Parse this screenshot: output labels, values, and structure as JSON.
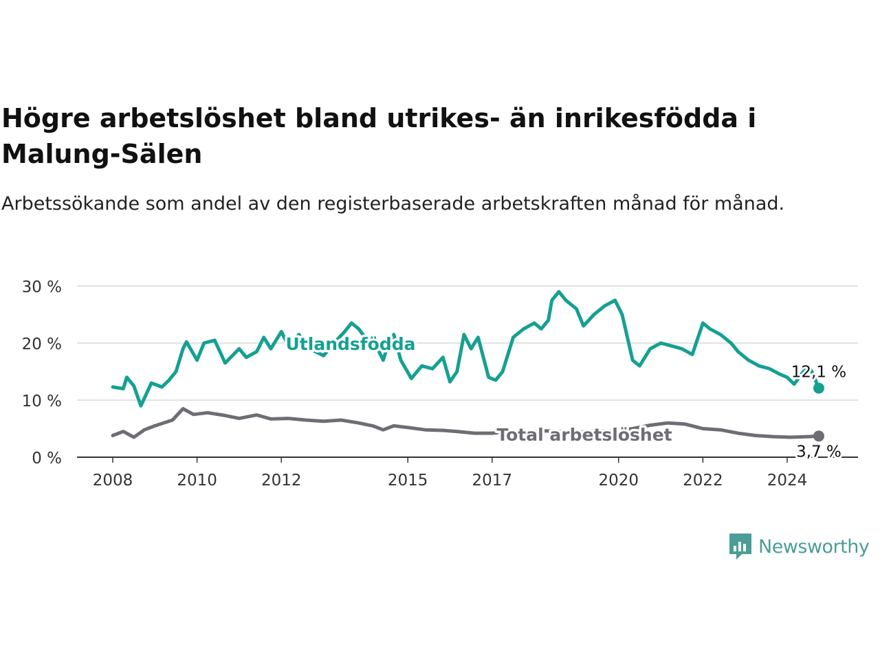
{
  "title": "Högre arbetslöshet bland utrikes- än inrikesfödda i Malung-Sälen",
  "subtitle": "Arbetssökande som andel av den registerbaserade arbetskraften månad för månad.",
  "brand": {
    "name": "Newsworthy",
    "color": "#4a9e96"
  },
  "chart_data": {
    "type": "line",
    "y_ticks": [
      {
        "value": 0,
        "label": "0 %"
      },
      {
        "value": 10,
        "label": "10 %"
      },
      {
        "value": 20,
        "label": "20 %"
      },
      {
        "value": 30,
        "label": "30 %"
      }
    ],
    "x_ticks": [
      {
        "value": "2008-01",
        "label": "2008"
      },
      {
        "value": "2010-01",
        "label": "2010"
      },
      {
        "value": "2012-01",
        "label": "2012"
      },
      {
        "value": "2015-01",
        "label": "2015"
      },
      {
        "value": "2017-01",
        "label": "2017"
      },
      {
        "value": "2020-01",
        "label": "2020"
      },
      {
        "value": "2022-01",
        "label": "2022"
      },
      {
        "value": "2024-01",
        "label": "2024"
      }
    ],
    "ylim": [
      0,
      30
    ],
    "xlim": [
      "2008-01",
      "2024-10"
    ],
    "grid": true,
    "series": [
      {
        "name": "Utlandsfödda",
        "color": "#15a092",
        "end_label": "12,1 %",
        "points": [
          [
            "2008-01",
            12.3
          ],
          [
            "2008-04",
            12.0
          ],
          [
            "2008-05",
            14.0
          ],
          [
            "2008-07",
            12.5
          ],
          [
            "2008-09",
            9.0
          ],
          [
            "2008-12",
            13.0
          ],
          [
            "2009-03",
            12.3
          ],
          [
            "2009-05",
            13.5
          ],
          [
            "2009-07",
            15.0
          ],
          [
            "2009-09",
            19.0
          ],
          [
            "2009-10",
            20.2
          ],
          [
            "2010-01",
            17.0
          ],
          [
            "2010-03",
            20.0
          ],
          [
            "2010-06",
            20.5
          ],
          [
            "2010-09",
            16.5
          ],
          [
            "2011-01",
            19.0
          ],
          [
            "2011-03",
            17.5
          ],
          [
            "2011-06",
            18.5
          ],
          [
            "2011-08",
            21.0
          ],
          [
            "2011-10",
            19.0
          ],
          [
            "2012-01",
            22.0
          ],
          [
            "2012-03",
            19.5
          ],
          [
            "2012-06",
            21.5
          ],
          [
            "2012-09",
            19.0
          ],
          [
            "2013-01",
            17.8
          ],
          [
            "2013-04",
            20.0
          ],
          [
            "2013-07",
            22.0
          ],
          [
            "2013-09",
            23.5
          ],
          [
            "2013-11",
            22.5
          ],
          [
            "2014-02",
            20.0
          ],
          [
            "2014-04",
            19.5
          ],
          [
            "2014-06",
            17.0
          ],
          [
            "2014-07",
            19.0
          ],
          [
            "2014-09",
            21.5
          ],
          [
            "2014-11",
            17.0
          ],
          [
            "2015-02",
            13.8
          ],
          [
            "2015-05",
            16.0
          ],
          [
            "2015-08",
            15.5
          ],
          [
            "2015-11",
            17.5
          ],
          [
            "2016-01",
            13.2
          ],
          [
            "2016-03",
            15.0
          ],
          [
            "2016-05",
            21.5
          ],
          [
            "2016-07",
            19.0
          ],
          [
            "2016-09",
            21.0
          ],
          [
            "2016-12",
            14.0
          ],
          [
            "2017-02",
            13.5
          ],
          [
            "2017-04",
            15.0
          ],
          [
            "2017-07",
            21.0
          ],
          [
            "2017-10",
            22.5
          ],
          [
            "2018-01",
            23.5
          ],
          [
            "2018-03",
            22.5
          ],
          [
            "2018-05",
            24.0
          ],
          [
            "2018-06",
            27.5
          ],
          [
            "2018-08",
            29.0
          ],
          [
            "2018-10",
            27.5
          ],
          [
            "2019-01",
            26.0
          ],
          [
            "2019-03",
            23.0
          ],
          [
            "2019-06",
            25.0
          ],
          [
            "2019-09",
            26.5
          ],
          [
            "2019-12",
            27.5
          ],
          [
            "2020-02",
            25.0
          ],
          [
            "2020-05",
            17.0
          ],
          [
            "2020-07",
            16.0
          ],
          [
            "2020-10",
            19.0
          ],
          [
            "2021-01",
            20.0
          ],
          [
            "2021-04",
            19.5
          ],
          [
            "2021-07",
            19.0
          ],
          [
            "2021-10",
            18.0
          ],
          [
            "2022-01",
            23.5
          ],
          [
            "2022-03",
            22.5
          ],
          [
            "2022-06",
            21.5
          ],
          [
            "2022-09",
            20.0
          ],
          [
            "2022-11",
            18.5
          ],
          [
            "2023-02",
            17.0
          ],
          [
            "2023-05",
            16.0
          ],
          [
            "2023-08",
            15.5
          ],
          [
            "2023-11",
            14.5
          ],
          [
            "2024-01",
            14.0
          ],
          [
            "2024-03",
            12.8
          ],
          [
            "2024-05",
            14.5
          ],
          [
            "2024-07",
            16.0
          ],
          [
            "2024-08",
            15.0
          ],
          [
            "2024-10",
            12.1
          ]
        ]
      },
      {
        "name": "Total arbetslöshet",
        "color": "#6e6d73",
        "end_label": "3,7 %",
        "points": [
          [
            "2008-01",
            3.8
          ],
          [
            "2008-04",
            4.5
          ],
          [
            "2008-07",
            3.5
          ],
          [
            "2008-10",
            4.8
          ],
          [
            "2009-01",
            5.5
          ],
          [
            "2009-06",
            6.5
          ],
          [
            "2009-09",
            8.5
          ],
          [
            "2009-12",
            7.5
          ],
          [
            "2010-04",
            7.8
          ],
          [
            "2010-09",
            7.3
          ],
          [
            "2011-01",
            6.8
          ],
          [
            "2011-06",
            7.4
          ],
          [
            "2011-10",
            6.7
          ],
          [
            "2012-03",
            6.8
          ],
          [
            "2012-08",
            6.5
          ],
          [
            "2013-01",
            6.3
          ],
          [
            "2013-06",
            6.5
          ],
          [
            "2013-11",
            6.0
          ],
          [
            "2014-03",
            5.5
          ],
          [
            "2014-06",
            4.8
          ],
          [
            "2014-09",
            5.5
          ],
          [
            "2015-01",
            5.2
          ],
          [
            "2015-06",
            4.8
          ],
          [
            "2015-11",
            4.7
          ],
          [
            "2016-03",
            4.5
          ],
          [
            "2016-08",
            4.2
          ],
          [
            "2017-01",
            4.2
          ],
          [
            "2017-06",
            4.5
          ],
          [
            "2017-11",
            4.4
          ],
          [
            "2018-04",
            4.6
          ],
          [
            "2018-09",
            4.5
          ],
          [
            "2019-02",
            4.4
          ],
          [
            "2019-07",
            4.6
          ],
          [
            "2019-12",
            4.6
          ],
          [
            "2020-05",
            5.0
          ],
          [
            "2020-10",
            5.6
          ],
          [
            "2021-03",
            6.0
          ],
          [
            "2021-08",
            5.8
          ],
          [
            "2022-01",
            5.0
          ],
          [
            "2022-06",
            4.8
          ],
          [
            "2022-11",
            4.2
          ],
          [
            "2023-04",
            3.8
          ],
          [
            "2023-09",
            3.6
          ],
          [
            "2024-02",
            3.5
          ],
          [
            "2024-07",
            3.6
          ],
          [
            "2024-10",
            3.7
          ]
        ]
      }
    ]
  }
}
